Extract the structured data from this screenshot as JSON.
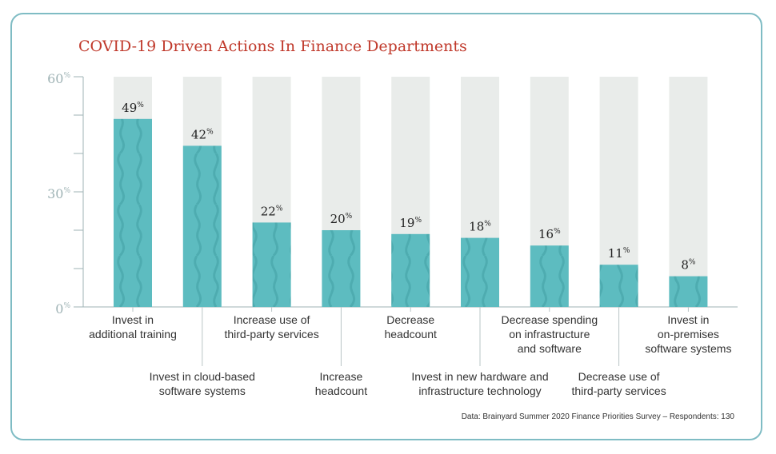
{
  "chart_data": {
    "type": "bar",
    "title": "COVID-19 Driven Actions In Finance Departments",
    "ylim": [
      0,
      60
    ],
    "yticks": [
      {
        "value": 0,
        "label": "0%"
      },
      {
        "value": 30,
        "label": "30%"
      },
      {
        "value": 60,
        "label": "60%"
      }
    ],
    "categories": [
      [
        "Invest in",
        "additional  training"
      ],
      [
        "Invest in cloud-based",
        "software systems"
      ],
      [
        "Increase use of",
        "third-party services"
      ],
      [
        "Increase",
        "headcount"
      ],
      [
        "Decrease",
        "headcount"
      ],
      [
        "Invest in new hardware and",
        "infrastructure technology"
      ],
      [
        "Decrease spending",
        "on infrastructure",
        "and software"
      ],
      [
        "Decrease use of",
        "third-party services"
      ],
      [
        "Invest in",
        "on-premises",
        "software systems"
      ]
    ],
    "values": [
      49,
      42,
      22,
      20,
      19,
      18,
      16,
      11,
      8
    ],
    "value_labels": [
      "49%",
      "42%",
      "22%",
      "20%",
      "19%",
      "18%",
      "16%",
      "11%",
      "8%"
    ],
    "colors": {
      "bar": "#5dbcc0",
      "track": "#e9ecea",
      "wave": "#4aa8ad",
      "axis": "#9fb3b5",
      "title": "#c0392b"
    }
  },
  "source_note": "Data: Brainyard Summer 2020 Finance Priorities Survey – Respondents: 130"
}
